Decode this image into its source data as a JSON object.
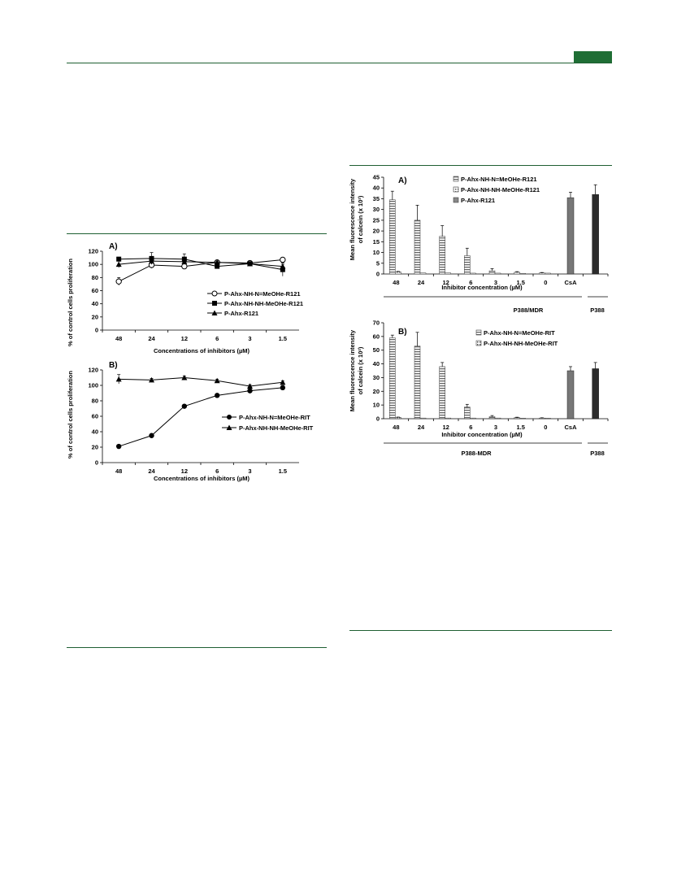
{
  "page": {
    "accent_color": "#1f6e35",
    "page_tab_icon": "green-page-tab"
  },
  "fig_left_a": {
    "type": "line",
    "panel_label": "A)",
    "ylabel": "% of control cells proliferation",
    "xlabel": "Concentrations of inhibitors (µM)",
    "categories": [
      "48",
      "24",
      "12",
      "6",
      "3",
      "1.5"
    ],
    "yticks": [
      "0",
      "20",
      "40",
      "60",
      "80",
      "100",
      "120"
    ],
    "ylim": [
      0,
      120
    ],
    "series": [
      {
        "name": "P-Ahx-NH-N=MeOHe-R121",
        "marker": "open-circle",
        "values": [
          74,
          99,
          97,
          103,
          102,
          107
        ],
        "errors": [
          6,
          5,
          4,
          2,
          2,
          3
        ]
      },
      {
        "name": "P-Ahx-NH-NH-MeOHe-R121",
        "marker": "square",
        "values": [
          108,
          109,
          108,
          97,
          101,
          92
        ],
        "errors": [
          3,
          9,
          8,
          3,
          2,
          10
        ]
      },
      {
        "name": "P-Ahx-R121",
        "marker": "triangle",
        "values": [
          100,
          105,
          104,
          103,
          101,
          97
        ],
        "errors": [
          5,
          5,
          4,
          2,
          2,
          3
        ]
      }
    ]
  },
  "fig_left_b": {
    "type": "line",
    "panel_label": "B)",
    "ylabel": "% of control cells proliferation",
    "xlabel": "Concentrations of inhibitors (µM)",
    "categories": [
      "48",
      "24",
      "12",
      "6",
      "3",
      "1.5"
    ],
    "yticks": [
      "0",
      "20",
      "40",
      "60",
      "80",
      "100",
      "120"
    ],
    "ylim": [
      0,
      120
    ],
    "series": [
      {
        "name": "P-Ahx-NH-N=MeOHe-RIT",
        "marker": "circle",
        "values": [
          21,
          35,
          73,
          87,
          93,
          97
        ],
        "errors": [
          1,
          1,
          2,
          2,
          3,
          3
        ]
      },
      {
        "name": "P-Ahx-NH-NH-MeOHe-RIT",
        "marker": "triangle",
        "values": [
          108,
          107,
          110,
          106,
          99,
          104
        ],
        "errors": [
          6,
          2,
          2,
          2,
          2,
          2
        ]
      }
    ]
  },
  "fig_right_a": {
    "type": "bar",
    "panel_label": "A)",
    "ylabel_line1": "Mean fluorescence intensity",
    "ylabel_line2": "of calcein (x 10²)",
    "xlabel": "Inhibitor concentration (µM)",
    "categories": [
      "48",
      "24",
      "12",
      "6",
      "3",
      "1.5",
      "0",
      "CsA",
      ""
    ],
    "yticks": [
      "0",
      "5",
      "10",
      "15",
      "20",
      "25",
      "30",
      "35",
      "40",
      "45"
    ],
    "ylim": [
      0,
      45
    ],
    "series": [
      {
        "name": "P-Ahx-NH-N=MeOHe-R121",
        "values": [
          34.5,
          25,
          17.5,
          8.5,
          1.5,
          0.8,
          0.5
        ],
        "errors": [
          4,
          7,
          5,
          3.5,
          1,
          0.3,
          0.2
        ]
      },
      {
        "name": "P-Ahx-NH-NH-MeOHe-R121",
        "values": [
          1,
          0.5,
          0.5,
          0.4,
          0.4,
          0.3,
          0.4
        ],
        "errors": [
          0.2,
          0.1,
          0.1,
          0.1,
          0.1,
          0.1,
          0.1
        ]
      },
      {
        "name": "P-Ahx-R121",
        "values": [],
        "errors": []
      }
    ],
    "controls": [
      {
        "category": "CsA",
        "value": 35.5,
        "error": 2.5,
        "color": "#777777"
      },
      {
        "category": "",
        "value": 37,
        "error": 4.5,
        "color": "#2b2b2b"
      }
    ],
    "group_labels": [
      "P388/MDR",
      "P388"
    ]
  },
  "fig_right_b": {
    "type": "bar",
    "panel_label": "B)",
    "ylabel_line1": "Mean fluorescence intensity",
    "ylabel_line2": "of calcein (x 10²)",
    "xlabel": "Inhibitor concentration (µM)",
    "categories": [
      "48",
      "24",
      "12",
      "6",
      "3",
      "1.5",
      "0",
      "CsA",
      ""
    ],
    "yticks": [
      "0",
      "10",
      "20",
      "30",
      "40",
      "50",
      "60",
      "70"
    ],
    "ylim": [
      0,
      70
    ],
    "series": [
      {
        "name": "P-Ahx-NH-N=MeOHe-RIT",
        "values": [
          59,
          53,
          38,
          8.5,
          1.5,
          0.8,
          0.5
        ],
        "errors": [
          2,
          10,
          3,
          2,
          0.8,
          0.3,
          0.2
        ]
      },
      {
        "name": "P-Ahx-NH-NH-MeOHe-RIT",
        "values": [
          1,
          0.5,
          0.5,
          0.5,
          0.5,
          0.4,
          0.4
        ],
        "errors": [
          0.2,
          0.1,
          0.1,
          0.1,
          0.1,
          0.1,
          0.1
        ]
      }
    ],
    "controls": [
      {
        "category": "CsA",
        "value": 35,
        "error": 3,
        "color": "#777777"
      },
      {
        "category": "",
        "value": 36.5,
        "error": 4.5,
        "color": "#2b2b2b"
      }
    ],
    "group_labels": [
      "P388-MDR",
      "P388"
    ]
  }
}
